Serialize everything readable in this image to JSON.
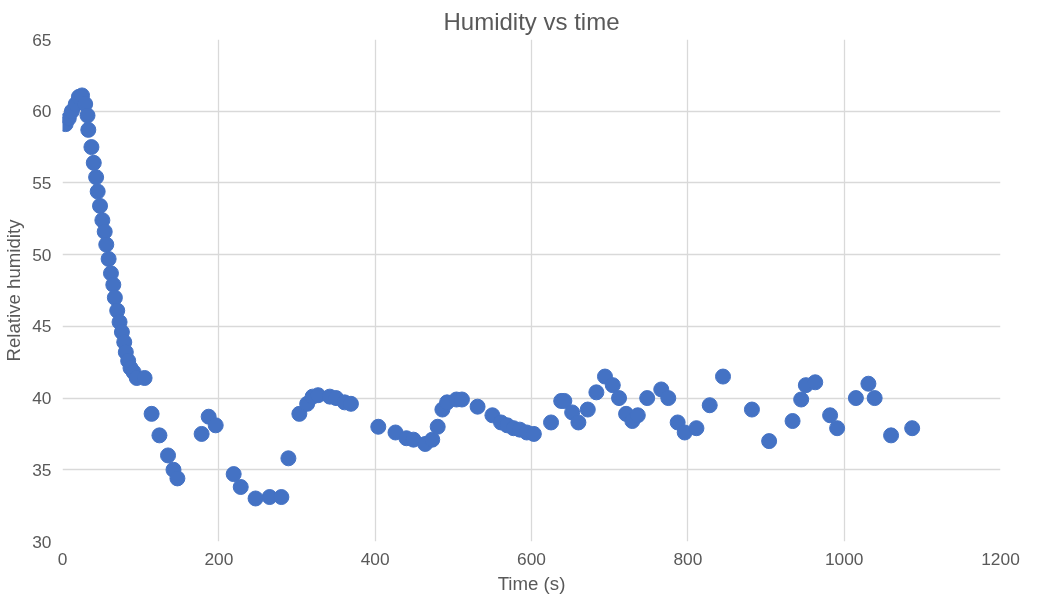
{
  "chart_data": {
    "type": "scatter",
    "title": "Humidity vs time",
    "xlabel": "Time (s)",
    "ylabel": "Relative humidity",
    "xlim": [
      0,
      1200
    ],
    "xticks": [
      0,
      200,
      400,
      600,
      800,
      1000,
      1200
    ],
    "ylim": [
      30,
      65
    ],
    "yticks": [
      30,
      35,
      40,
      45,
      50,
      55,
      60,
      65
    ],
    "grid": true,
    "marker": "circle",
    "series": [
      {
        "color": "#4472c4",
        "x": [
          4,
          8,
          12,
          17,
          21,
          25,
          29,
          32,
          33,
          37,
          40,
          43,
          45,
          48,
          51,
          54,
          56,
          59,
          62,
          65,
          67,
          70,
          73,
          76,
          79,
          81,
          84,
          87,
          91,
          95,
          105,
          114,
          124,
          135,
          142,
          147,
          178,
          187,
          196,
          219,
          228,
          247,
          265,
          280,
          289,
          303,
          313,
          320,
          327,
          342,
          350,
          361,
          369,
          404,
          426,
          440,
          449,
          464,
          473,
          480,
          486,
          492,
          504,
          511,
          531,
          550,
          561,
          569,
          577,
          585,
          594,
          603,
          625,
          638,
          642,
          652,
          660,
          672,
          683,
          694,
          704,
          712,
          721,
          729,
          736,
          748,
          766,
          775,
          787,
          796,
          811,
          828,
          845,
          882,
          904,
          934,
          945,
          951,
          963,
          982,
          991,
          1015,
          1031,
          1039,
          1060,
          1087
        ],
        "values": [
          59.1,
          59.5,
          60.0,
          60.5,
          61.0,
          61.1,
          60.5,
          59.7,
          58.7,
          57.5,
          56.4,
          55.4,
          54.4,
          53.4,
          52.4,
          51.6,
          50.7,
          49.7,
          48.7,
          47.9,
          47.0,
          46.1,
          45.3,
          44.6,
          43.9,
          43.2,
          42.6,
          42.1,
          41.8,
          41.4,
          41.4,
          38.9,
          37.4,
          36.0,
          35.0,
          34.4,
          37.5,
          38.7,
          38.1,
          34.7,
          33.8,
          33.0,
          33.1,
          33.1,
          35.8,
          38.9,
          39.6,
          40.1,
          40.2,
          40.1,
          40.0,
          39.7,
          39.6,
          38.0,
          37.6,
          37.2,
          37.1,
          36.8,
          37.1,
          38.0,
          39.2,
          39.7,
          39.9,
          39.9,
          39.4,
          38.8,
          38.3,
          38.1,
          37.9,
          37.8,
          37.6,
          37.5,
          38.3,
          39.8,
          39.8,
          39.0,
          38.3,
          39.2,
          40.4,
          41.5,
          40.9,
          40.0,
          38.9,
          38.4,
          38.8,
          40.0,
          40.6,
          40.0,
          38.3,
          37.6,
          37.9,
          39.5,
          41.5,
          39.2,
          37.0,
          38.4,
          39.9,
          40.9,
          41.1,
          38.8,
          37.9,
          40.0,
          41.0,
          40.0,
          37.4,
          37.9
        ]
      }
    ]
  }
}
